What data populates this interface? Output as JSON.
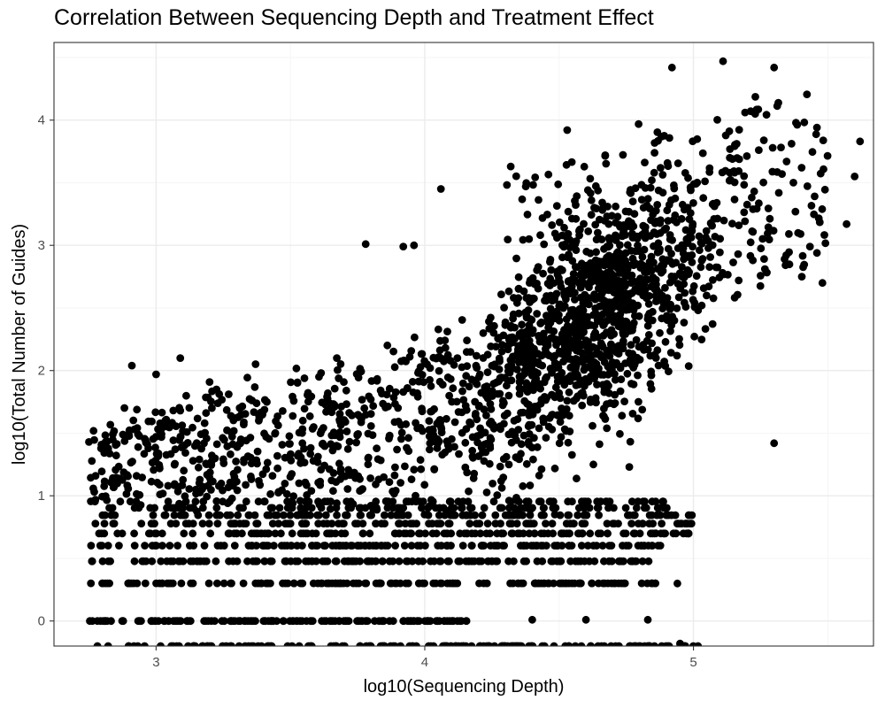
{
  "chart_data": {
    "type": "scatter",
    "title": "Correlation Between Sequencing Depth and Treatment Effect",
    "xlabel": "log10(Sequencing Depth)",
    "ylabel": "log10(Total Number of Guides)",
    "xlim": [
      2.62,
      5.67
    ],
    "ylim": [
      -0.2,
      4.62
    ],
    "xticks": [
      3,
      4,
      5
    ],
    "xtick_labels": [
      "3",
      "4",
      "5"
    ],
    "yticks": [
      0,
      1,
      2,
      3,
      4
    ],
    "ytick_labels": [
      "0",
      "1",
      "2",
      "3",
      "4"
    ],
    "grid": true,
    "theme": "bw",
    "point_color": "#000000",
    "grid_major_color": "#ebebeb",
    "grid_minor_color": "#f5f5f5",
    "legend": "none",
    "point_count": 2600,
    "points_sample": [
      [
        4.92,
        4.42
      ],
      [
        5.11,
        4.47
      ],
      [
        5.3,
        4.42
      ],
      [
        5.62,
        3.83
      ],
      [
        5.6,
        3.55
      ],
      [
        5.57,
        3.17
      ],
      [
        5.48,
        2.7
      ],
      [
        4.53,
        3.92
      ],
      [
        4.06,
        3.45
      ],
      [
        4.32,
        3.63
      ],
      [
        3.78,
        3.01
      ],
      [
        3.92,
        2.99
      ],
      [
        3.96,
        3.0
      ],
      [
        2.91,
        2.04
      ],
      [
        3.09,
        2.1
      ],
      [
        3.0,
        1.97
      ],
      [
        2.75,
        1.43
      ],
      [
        5.3,
        1.42
      ],
      [
        4.4,
        0.01
      ],
      [
        4.6,
        0.01
      ],
      [
        4.83,
        0.01
      ],
      [
        4.95,
        -0.18
      ],
      [
        4.94,
        0.3
      ],
      [
        4.86,
        0.7
      ],
      [
        4.98,
        0.7
      ]
    ]
  }
}
